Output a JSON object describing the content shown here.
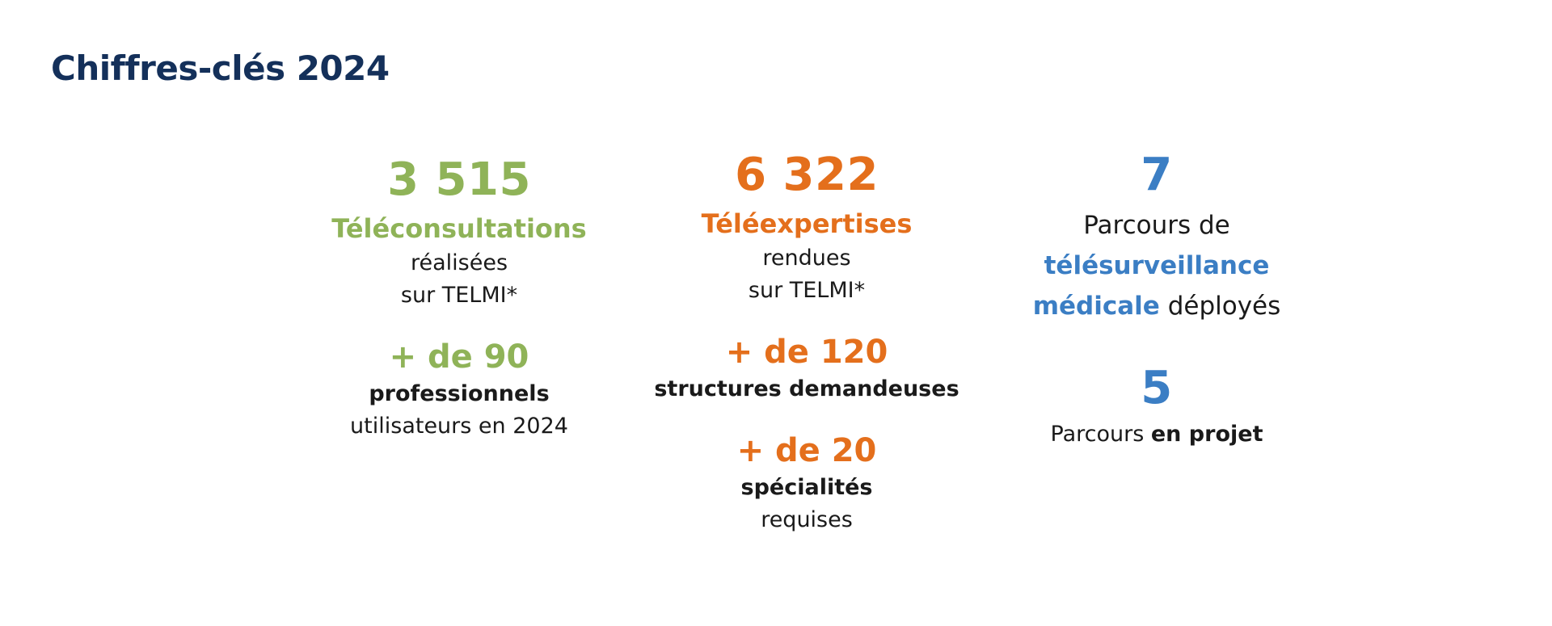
{
  "title": "Chiffres-clés 2024",
  "colors": {
    "title": "#14305a",
    "teleconsultation": "#8fb358",
    "teleexpertise": "#e46f1c",
    "telesurveillance": "#3b7ec4",
    "text": "#1a1a1a"
  },
  "teleconsultation": {
    "count": "3 515",
    "label": "Téléconsultations",
    "line1": "réalisées",
    "line2": "sur TELMI*",
    "pro_count": "+ de 90",
    "pro_label": "professionnels",
    "pro_line": "utilisateurs en 2024"
  },
  "teleexpertise": {
    "count": "6 322",
    "label": "Téléexpertises",
    "line1": "rendues",
    "line2": "sur TELMI*",
    "struct_count": "+ de 120",
    "struct_label": "structures demandeuses",
    "spec_count": "+ de 20",
    "spec_label": "spécialités",
    "spec_line": "requises"
  },
  "telesurveillance": {
    "count": "7",
    "line1": "Parcours de",
    "label_part1": "télésurveillance",
    "label_part2": "médicale",
    "label_suffix": "déployés",
    "project_count": "5",
    "project_prefix": "Parcours",
    "project_bold": "en projet"
  }
}
